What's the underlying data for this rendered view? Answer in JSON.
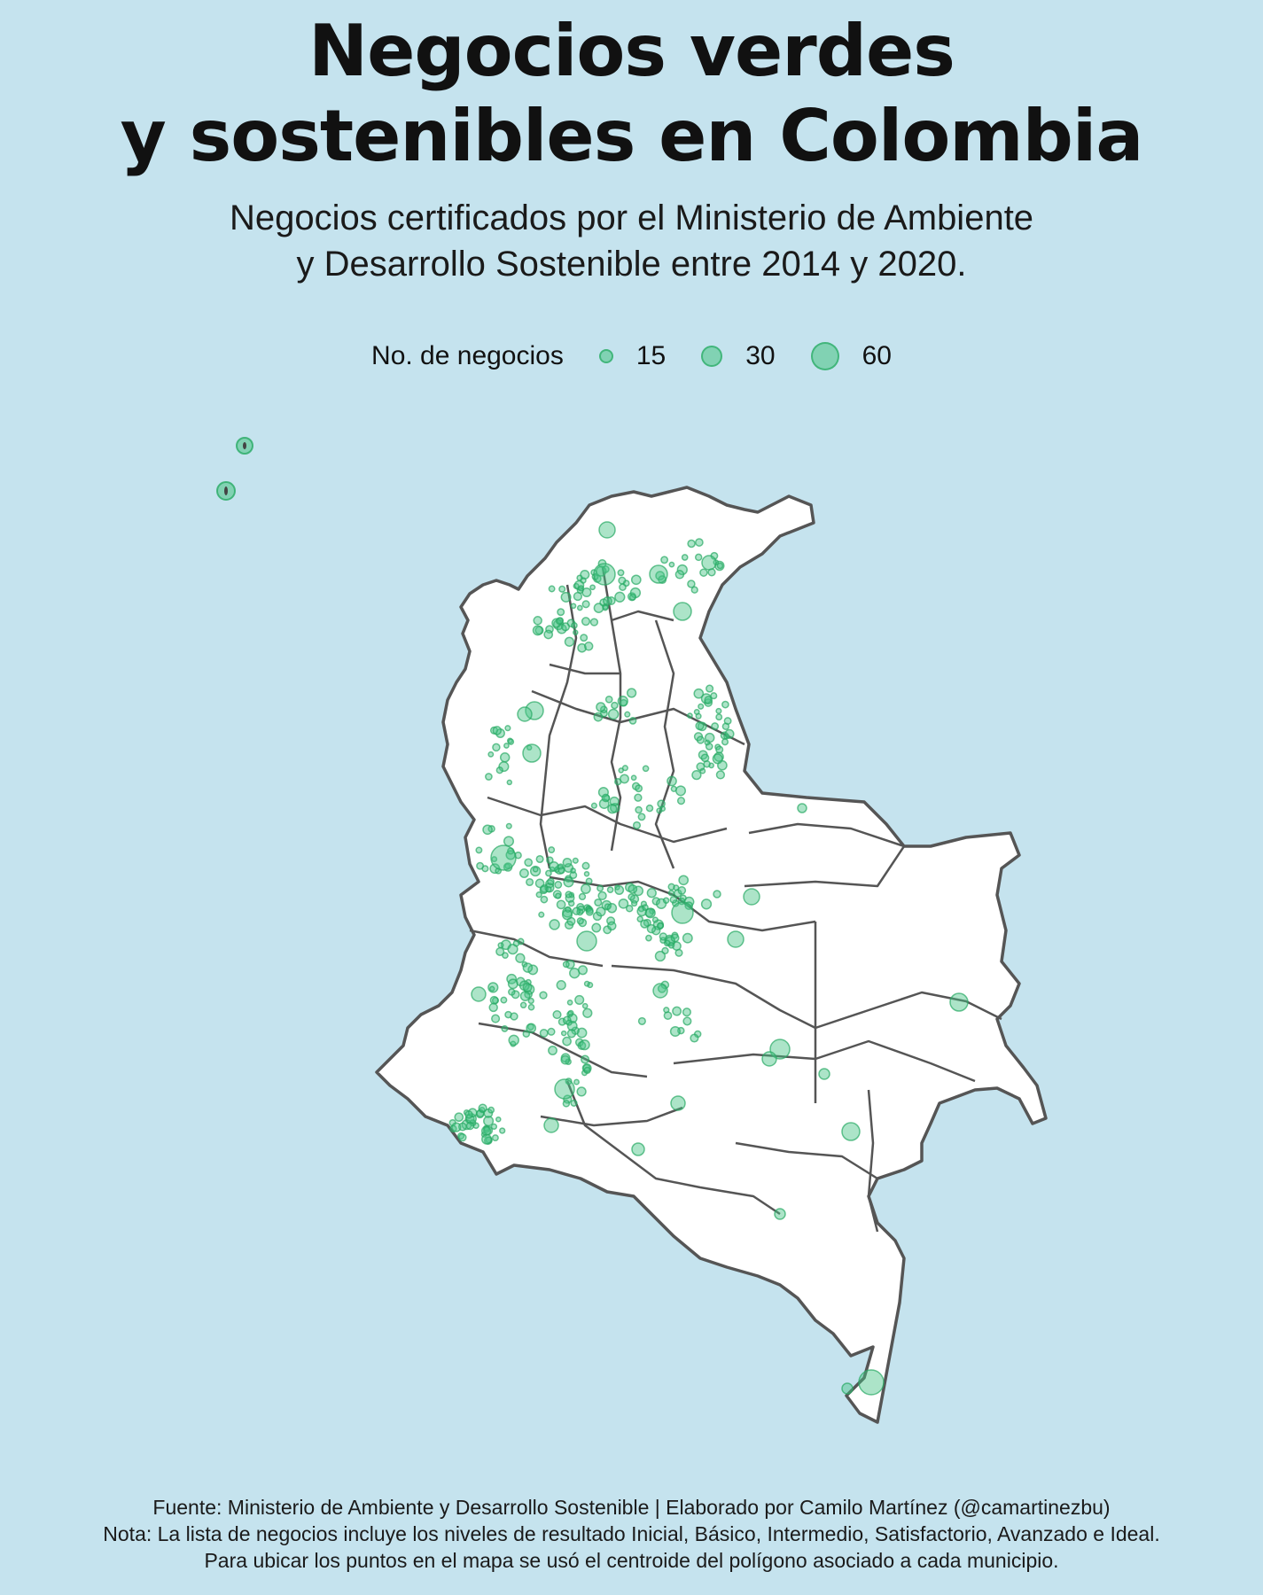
{
  "title": {
    "line1": "Negocios verdes",
    "line2": "y sostenibles en Colombia"
  },
  "subtitle": {
    "line1": "Negocios certificados por el Ministerio de Ambiente",
    "line2": "y Desarrollo Sostenible entre 2014 y 2020."
  },
  "legend": {
    "label": "No. de negocios",
    "items": [
      {
        "value": "15",
        "size": 15
      },
      {
        "value": "30",
        "size": 30
      },
      {
        "value": "60",
        "size": 60
      }
    ]
  },
  "colors": {
    "background": "#c5e3ee",
    "land": "#ffffff",
    "border": "#555555",
    "bubble_fill": "#48c484",
    "bubble_stroke": "#28aa64"
  },
  "footer": {
    "line1": "Fuente: Ministerio de Ambiente y Desarrollo Sostenible | Elaborado por Camilo Martínez (@camartinezbu)",
    "line2": "Nota: La lista de negocios incluye los niveles de resultado Inicial, Básico, Intermedio, Satisfactorio, Avanzado e Ideal.",
    "line3": "Para ubicar los puntos en el mapa se usó el centroide del polígono asociado a cada municipio."
  }
}
